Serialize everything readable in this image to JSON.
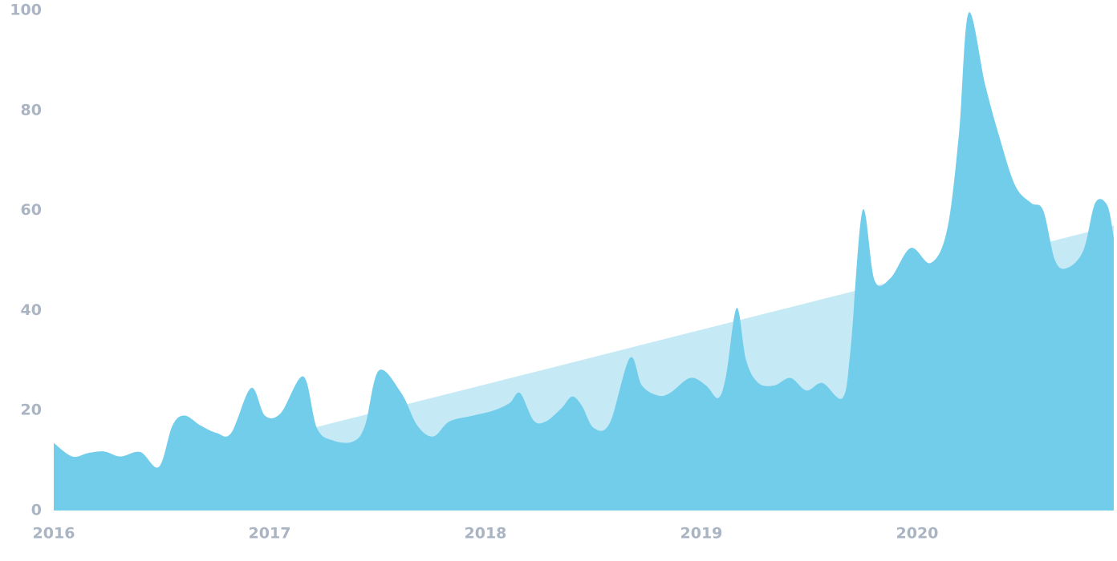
{
  "chart_data": {
    "type": "area",
    "xlim": [
      2016,
      2020.911
    ],
    "xticks": [
      2016,
      2017,
      2018,
      2019,
      2020
    ],
    "ylim": [
      0,
      100
    ],
    "yticks": [
      0,
      20,
      40,
      60,
      80,
      100
    ],
    "grid": false,
    "series": [
      {
        "color": "#72cdea",
        "x": [
          2016.0,
          2016.086,
          2016.16,
          2016.234,
          2016.309,
          2016.401,
          2016.487,
          2016.55,
          2016.606,
          2016.68,
          2016.755,
          2016.822,
          2016.914,
          2016.978,
          2017.052,
          2017.156,
          2017.219,
          2017.294,
          2017.387,
          2017.442,
          2017.506,
          2017.61,
          2017.684,
          2017.758,
          2017.833,
          2017.944,
          2018.037,
          2018.112,
          2018.16,
          2018.223,
          2018.279,
          2018.353,
          2018.401,
          2018.446,
          2018.502,
          2018.576,
          2018.669,
          2018.725,
          2018.799,
          2018.855,
          2018.948,
          2019.022,
          2019.078,
          2019.115,
          2019.164,
          2019.208,
          2019.264,
          2019.338,
          2019.413,
          2019.487,
          2019.561,
          2019.654,
          2019.691,
          2019.747,
          2019.803,
          2019.877,
          2019.97,
          2020.063,
          2020.138,
          2020.193,
          2020.238,
          2020.316,
          2020.379,
          2020.454,
          2020.528,
          2020.584,
          2020.639,
          2020.695,
          2020.77,
          2020.825,
          2020.881,
          2020.911
        ],
        "values": [
          13.5,
          10.8,
          11.5,
          11.8,
          10.8,
          11.7,
          8.7,
          17,
          19,
          17,
          15.5,
          15.5,
          24.5,
          19,
          19.5,
          26.8,
          16.5,
          14,
          13.8,
          17,
          28,
          23.5,
          17,
          14.8,
          17.8,
          19,
          20,
          21.5,
          23.5,
          18,
          17.8,
          20.5,
          22.8,
          21,
          16.5,
          17.5,
          30.5,
          25,
          23,
          23.5,
          26.5,
          25,
          22.5,
          27,
          40.5,
          30,
          25.5,
          25,
          26.5,
          24,
          25.5,
          22.5,
          32,
          60,
          46,
          46.5,
          52.5,
          49.5,
          56,
          75,
          99.5,
          85,
          75,
          65,
          61.5,
          60,
          50,
          48.5,
          52,
          61.5,
          61,
          54.5
        ]
      },
      {
        "color": "#c5eaf6",
        "x": [
          2016,
          2020.911
        ],
        "values": [
          3.4,
          57
        ]
      }
    ]
  }
}
